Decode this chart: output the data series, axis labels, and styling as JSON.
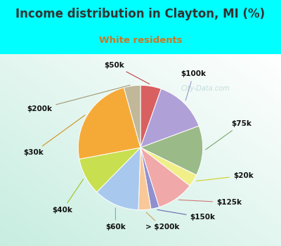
{
  "title": "Income distribution in Clayton, MI (%)",
  "subtitle": "White residents",
  "title_color": "#333333",
  "subtitle_color": "#cc7722",
  "background_color": "#00ffff",
  "watermark": "City-Data.com",
  "labels": [
    "$50k",
    "$100k",
    "$75k",
    "$20k",
    "$125k",
    "$150k",
    "> $200k",
    "$60k",
    "$40k",
    "$30k",
    "$200k"
  ],
  "values": [
    5,
    13,
    12,
    3,
    9,
    2,
    3,
    11,
    9,
    22,
    4
  ],
  "colors": [
    "#d96060",
    "#b0a0d8",
    "#9aba88",
    "#f0ef88",
    "#f0a8a8",
    "#9090d0",
    "#f8c898",
    "#a8c8ee",
    "#c8e050",
    "#f5aa38",
    "#c0b898"
  ],
  "label_line_colors": [
    "#c04040",
    "#9898c8",
    "#78a868",
    "#d0d020",
    "#d07878",
    "#6868b0",
    "#d0a060",
    "#78a8d0",
    "#a0c020",
    "#d09020",
    "#a09870"
  ],
  "startangle": 90,
  "chart_area": [
    0.03,
    0.02,
    0.94,
    0.76
  ]
}
